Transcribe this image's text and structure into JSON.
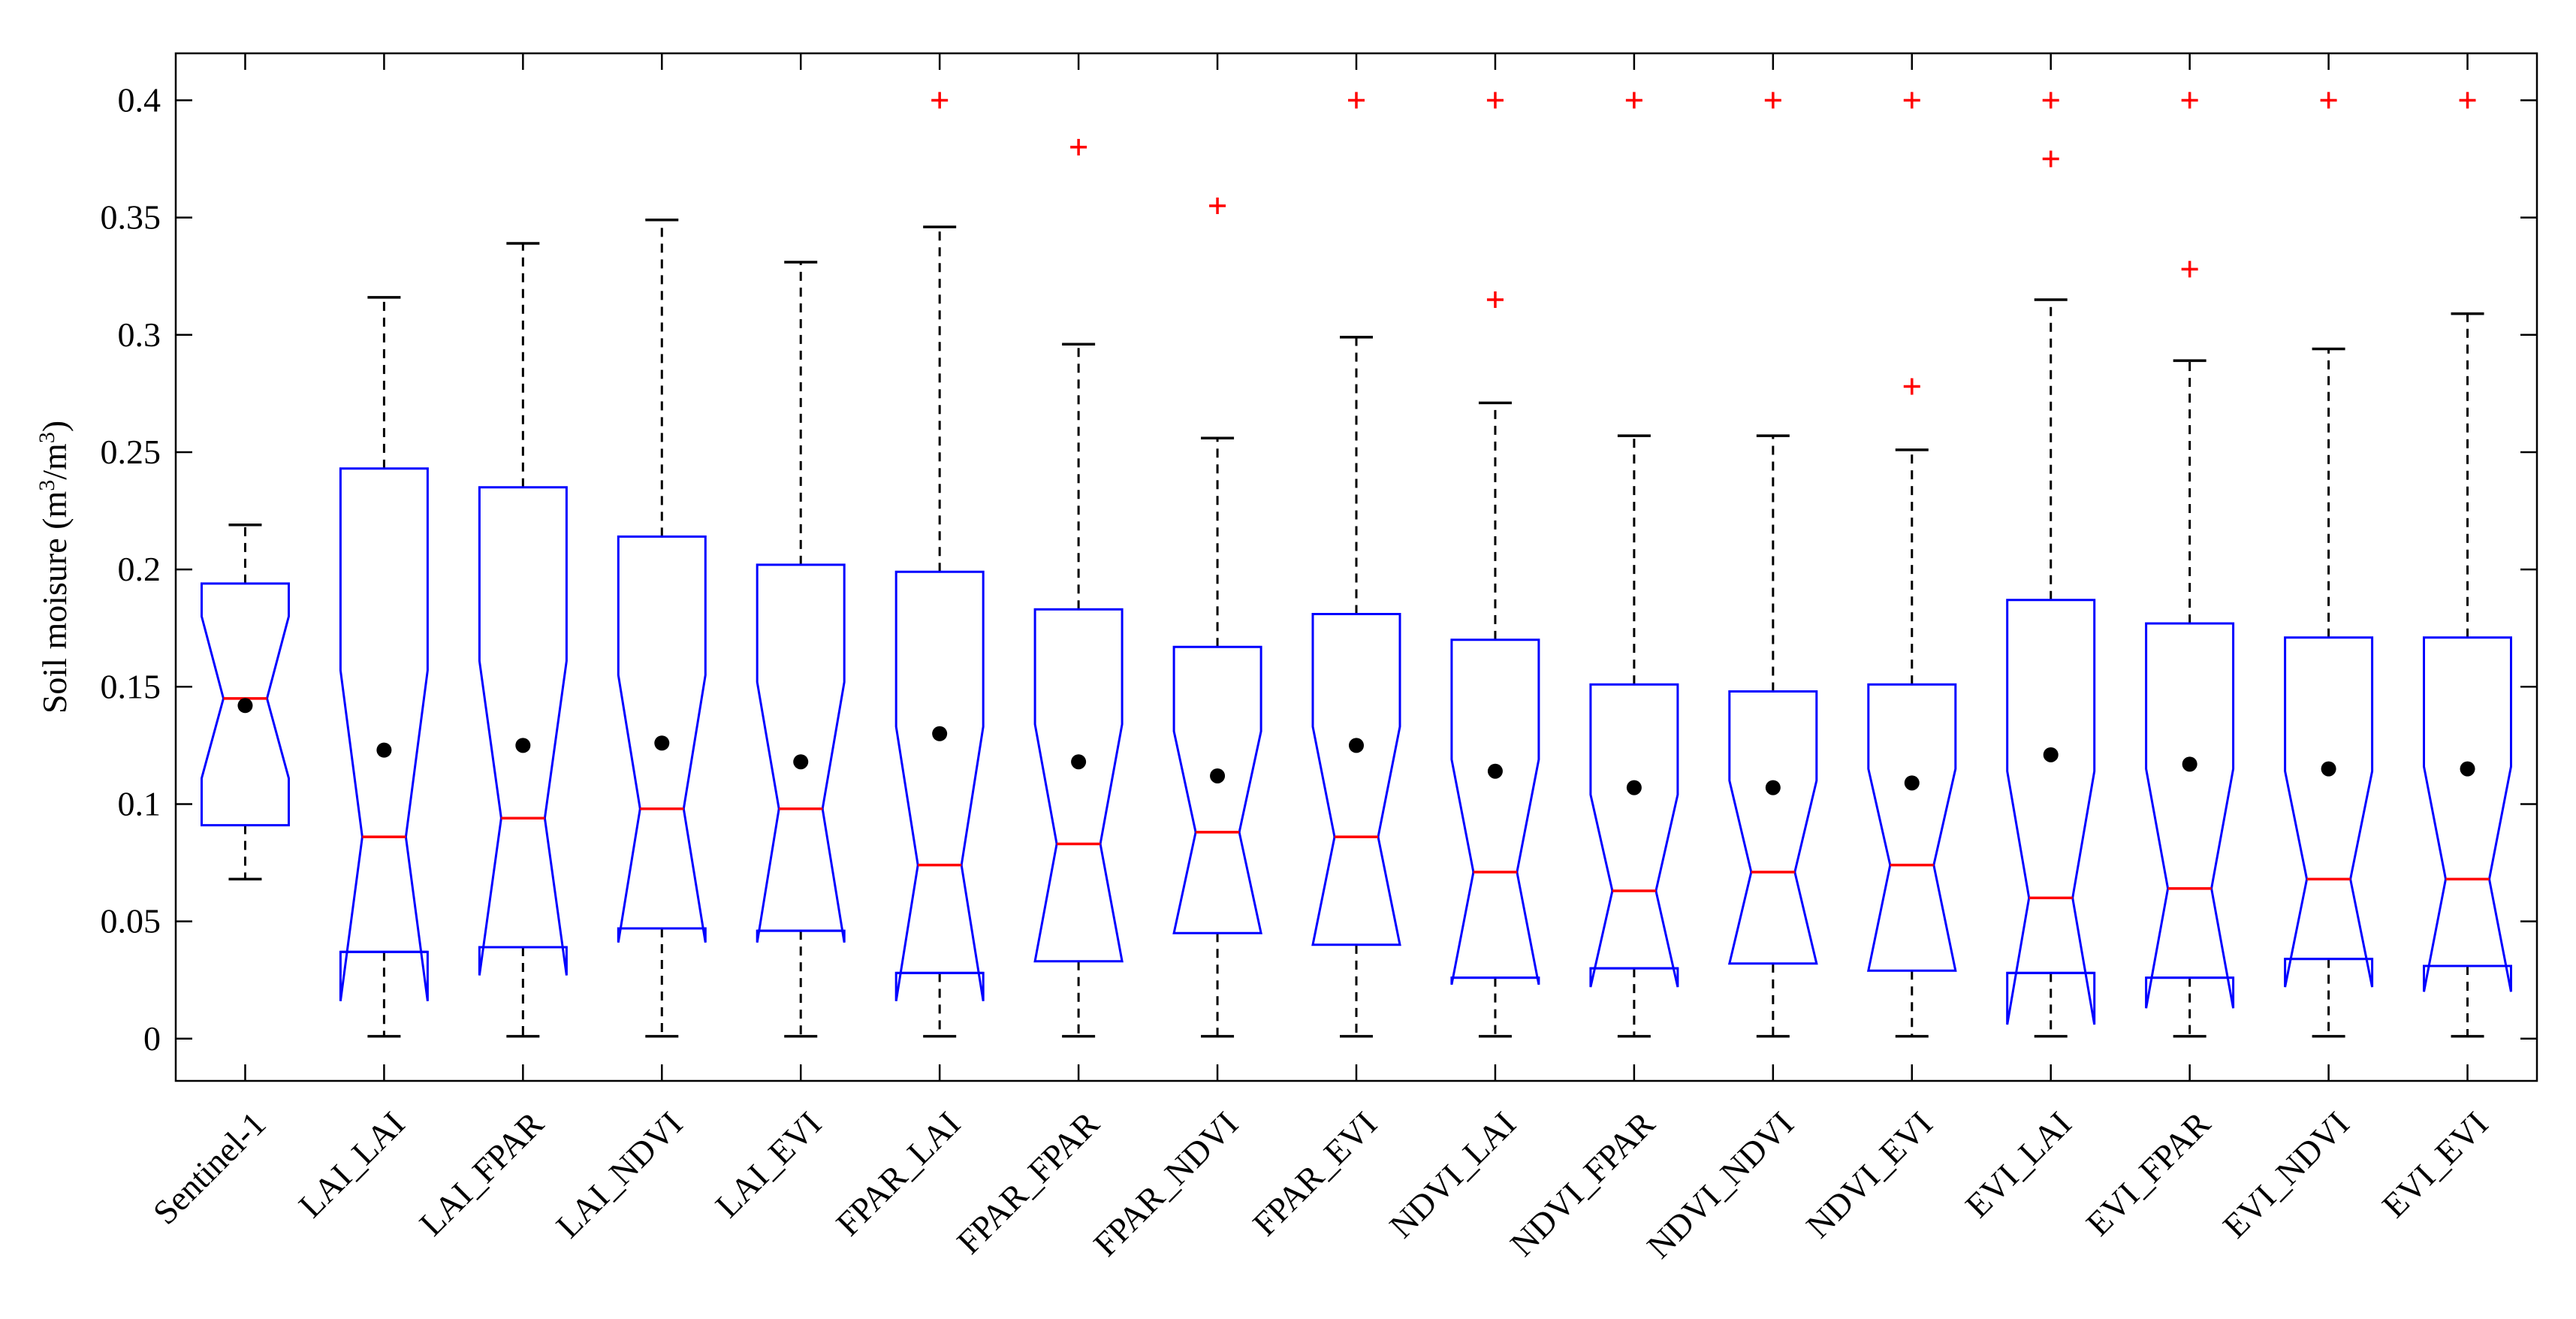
{
  "chart_data": {
    "type": "boxplot",
    "title": "",
    "xlabel": "",
    "ylabel_prefix": "Soil moisure (m",
    "ylabel_sup1": "3",
    "ylabel_mid": "/m",
    "ylabel_sup2": "3",
    "ylabel_suffix": ")",
    "ylim": [
      -0.018,
      0.42
    ],
    "yticks": [
      0,
      0.05,
      0.1,
      0.15,
      0.2,
      0.25,
      0.3,
      0.35,
      0.4
    ],
    "ytick_labels": [
      "0",
      "0.05",
      "0.1",
      "0.15",
      "0.2",
      "0.25",
      "0.3",
      "0.35",
      "0.4"
    ],
    "grid": false,
    "categories": [
      "Sentinel-1",
      "LAI_LAI",
      "LAI_FPAR",
      "LAI_NDVI",
      "LAI_EVI",
      "FPAR_LAI",
      "FPAR_FPAR",
      "FPAR_NDVI",
      "FPAR_EVI",
      "NDVI_LAI",
      "NDVI_FPAR",
      "NDVI_NDVI",
      "NDVI_EVI",
      "EVI_LAI",
      "EVI_FPAR",
      "EVI_NDVI",
      "EVI_EVI"
    ],
    "whisker_low": [
      0.068,
      0.001,
      0.001,
      0.001,
      0.001,
      0.001,
      0.001,
      0.001,
      0.001,
      0.001,
      0.001,
      0.001,
      0.001,
      0.001,
      0.001,
      0.001,
      0.001
    ],
    "q1": [
      0.091,
      0.037,
      0.039,
      0.047,
      0.046,
      0.028,
      0.033,
      0.045,
      0.04,
      0.026,
      0.03,
      0.032,
      0.029,
      0.028,
      0.026,
      0.034,
      0.031
    ],
    "median": [
      0.145,
      0.086,
      0.094,
      0.098,
      0.098,
      0.074,
      0.083,
      0.088,
      0.086,
      0.071,
      0.063,
      0.071,
      0.074,
      0.06,
      0.064,
      0.068,
      0.068
    ],
    "q3": [
      0.194,
      0.243,
      0.235,
      0.214,
      0.202,
      0.199,
      0.183,
      0.167,
      0.181,
      0.17,
      0.151,
      0.148,
      0.151,
      0.187,
      0.177,
      0.171,
      0.171
    ],
    "whisker_high": [
      0.219,
      0.316,
      0.339,
      0.349,
      0.331,
      0.346,
      0.296,
      0.256,
      0.299,
      0.271,
      0.257,
      0.257,
      0.251,
      0.315,
      0.289,
      0.294,
      0.309
    ],
    "notch_low": [
      0.111,
      0.016,
      0.027,
      0.041,
      0.041,
      0.016,
      0.033,
      0.045,
      0.04,
      0.023,
      0.022,
      0.032,
      0.029,
      0.006,
      0.013,
      0.022,
      0.02
    ],
    "notch_high": [
      0.18,
      0.157,
      0.161,
      0.155,
      0.152,
      0.133,
      0.134,
      0.131,
      0.133,
      0.119,
      0.104,
      0.11,
      0.115,
      0.114,
      0.115,
      0.114,
      0.116
    ],
    "mean": [
      0.142,
      0.123,
      0.125,
      0.126,
      0.118,
      0.13,
      0.118,
      0.112,
      0.125,
      0.114,
      0.107,
      0.107,
      0.109,
      0.121,
      0.117,
      0.115,
      0.115
    ],
    "outliers": [
      [],
      [],
      [],
      [],
      [],
      [
        0.4
      ],
      [
        0.38
      ],
      [
        0.355
      ],
      [
        0.4
      ],
      [
        0.4,
        0.315
      ],
      [
        0.4
      ],
      [
        0.4
      ],
      [
        0.4,
        0.278
      ],
      [
        0.4,
        0.375
      ],
      [
        0.4,
        0.328
      ],
      [
        0.4
      ],
      [
        0.4
      ]
    ],
    "colors": {
      "box": "#0000ff",
      "median": "#ff0000",
      "outlier": "#ff0000",
      "mean": "#000000",
      "whisker": "#000000",
      "axis": "#000000"
    }
  }
}
